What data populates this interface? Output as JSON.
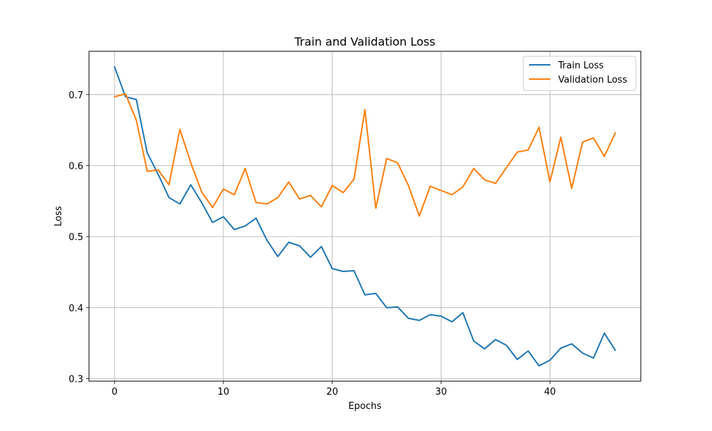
{
  "chart_data": {
    "type": "line",
    "title": "Train and Validation Loss",
    "xlabel": "Epochs",
    "ylabel": "Loss",
    "xlim": [
      -2.35,
      48.35
    ],
    "ylim": [
      0.2965,
      0.761
    ],
    "x_ticks": [
      0,
      10,
      20,
      30,
      40
    ],
    "y_ticks": [
      0.3,
      0.4,
      0.5,
      0.6,
      0.7
    ],
    "x_tick_labels": [
      "0",
      "10",
      "20",
      "30",
      "40"
    ],
    "y_tick_labels": [
      "0.3",
      "0.4",
      "0.5",
      "0.6",
      "0.7"
    ],
    "grid": true,
    "legend_position": "top-right",
    "x": [
      0,
      1,
      2,
      3,
      4,
      5,
      6,
      7,
      8,
      9,
      10,
      11,
      12,
      13,
      14,
      15,
      16,
      17,
      18,
      19,
      20,
      21,
      22,
      23,
      24,
      25,
      26,
      27,
      28,
      29,
      30,
      31,
      32,
      33,
      34,
      35,
      36,
      37,
      38,
      39,
      40,
      41,
      42,
      43,
      44,
      45,
      46
    ],
    "series": [
      {
        "name": "Train Loss",
        "color": "#1f77b4",
        "values": [
          0.739,
          0.697,
          0.693,
          0.618,
          0.588,
          0.555,
          0.546,
          0.573,
          0.548,
          0.52,
          0.528,
          0.51,
          0.515,
          0.526,
          0.495,
          0.472,
          0.492,
          0.487,
          0.471,
          0.486,
          0.455,
          0.451,
          0.452,
          0.418,
          0.42,
          0.4,
          0.401,
          0.385,
          0.382,
          0.39,
          0.388,
          0.38,
          0.393,
          0.353,
          0.342,
          0.355,
          0.347,
          0.327,
          0.339,
          0.318,
          0.326,
          0.343,
          0.349,
          0.336,
          0.329,
          0.364,
          0.34
        ]
      },
      {
        "name": "Validation Loss",
        "color": "#ff7f0e",
        "values": [
          0.697,
          0.701,
          0.664,
          0.592,
          0.594,
          0.573,
          0.651,
          0.604,
          0.563,
          0.541,
          0.567,
          0.559,
          0.596,
          0.548,
          0.546,
          0.555,
          0.577,
          0.553,
          0.558,
          0.542,
          0.572,
          0.562,
          0.581,
          0.679,
          0.54,
          0.61,
          0.604,
          0.572,
          0.529,
          0.571,
          0.565,
          0.559,
          0.57,
          0.596,
          0.58,
          0.575,
          0.597,
          0.619,
          0.622,
          0.654,
          0.577,
          0.64,
          0.568,
          0.633,
          0.639,
          0.613,
          0.646
        ]
      }
    ]
  }
}
